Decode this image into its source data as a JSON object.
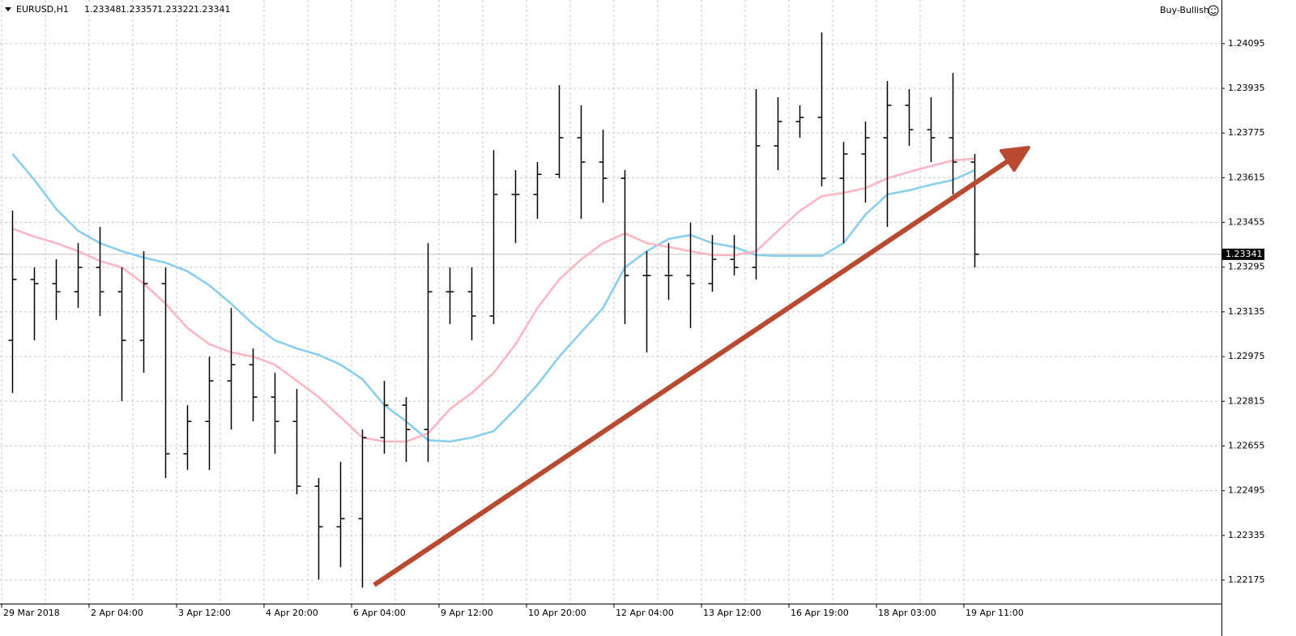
{
  "chart_data": {
    "type": "ohlc",
    "symbol": "EURUSD,H1",
    "header_values": [
      1.23348,
      1.23357,
      1.23322,
      1.23341
    ],
    "signal": "Buy-Bullish",
    "categories": [
      "29 Mar 2018",
      null,
      null,
      null,
      "2 Apr 04:00",
      null,
      null,
      null,
      "3 Apr 12:00",
      null,
      null,
      null,
      "4 Apr 20:00",
      null,
      null,
      null,
      "6 Apr 04:00",
      null,
      null,
      null,
      "9 Apr 12:00",
      null,
      null,
      null,
      "10 Apr 20:00",
      null,
      null,
      null,
      "12 Apr 04:00",
      null,
      null,
      null,
      "13 Apr 12:00",
      null,
      null,
      null,
      "16 Apr 19:00",
      null,
      null,
      null,
      "18 Apr 03:00",
      null,
      null,
      null,
      "19 Apr 11:00"
    ],
    "open": [
      1.23033,
      1.23251,
      1.23236,
      1.23207,
      1.23294,
      1.23207,
      1.23033,
      1.23236,
      1.22627,
      1.22743,
      1.22888,
      1.22946,
      1.2283,
      1.22743,
      1.22511,
      1.22366,
      1.22395,
      1.22685,
      1.22801,
      1.22714,
      1.23207,
      1.23207,
      1.2312,
      1.23555,
      1.23555,
      1.23627,
      1.23758,
      1.23671,
      1.23613,
      1.23265,
      1.23265,
      1.23265,
      1.23236,
      1.23323,
      1.23294,
      1.23729,
      1.23816,
      1.23831,
      1.23613,
      1.237,
      1.23758,
      1.23874,
      1.23787,
      1.23758,
      1.23671
    ],
    "high": [
      1.23497,
      1.23294,
      1.23323,
      1.23381,
      1.23439,
      1.23294,
      1.23352,
      1.23294,
      1.22801,
      1.22975,
      1.23149,
      1.23004,
      1.22917,
      1.22859,
      1.2254,
      1.22598,
      1.22714,
      1.22888,
      1.2283,
      1.23381,
      1.23294,
      1.23294,
      1.23714,
      1.23642,
      1.23671,
      1.23946,
      1.23874,
      1.23787,
      1.23642,
      1.23352,
      1.23381,
      1.23454,
      1.2341,
      1.2341,
      1.23932,
      1.23903,
      1.23874,
      1.24135,
      1.23743,
      1.23816,
      1.23961,
      1.23932,
      1.23903,
      1.2399,
      1.237
    ],
    "low": [
      1.22845,
      1.23033,
      1.23106,
      1.23149,
      1.2312,
      1.22816,
      1.22917,
      1.2254,
      1.22569,
      1.22569,
      1.22714,
      1.22743,
      1.22627,
      1.22482,
      1.22177,
      1.22221,
      1.22148,
      1.22627,
      1.22598,
      1.22598,
      1.23091,
      1.23033,
      1.23091,
      1.23381,
      1.23468,
      1.23613,
      1.23468,
      1.23526,
      1.23091,
      1.2299,
      1.23178,
      1.23077,
      1.23207,
      1.23265,
      1.23251,
      1.23642,
      1.23758,
      1.23584,
      1.23381,
      1.23526,
      1.23439,
      1.23729,
      1.23671,
      1.23555,
      1.23294
    ],
    "close": [
      1.23251,
      1.23236,
      1.23207,
      1.23294,
      1.23207,
      1.23033,
      1.23236,
      1.22627,
      1.22743,
      1.22888,
      1.22946,
      1.2283,
      1.22743,
      1.22511,
      1.22366,
      1.22395,
      1.22685,
      1.22801,
      1.22714,
      1.23207,
      1.23207,
      1.2312,
      1.23555,
      1.23555,
      1.23627,
      1.23758,
      1.23671,
      1.23613,
      1.23265,
      1.23265,
      1.23265,
      1.23236,
      1.23323,
      1.23294,
      1.23729,
      1.23816,
      1.23831,
      1.23613,
      1.237,
      1.23758,
      1.23874,
      1.23787,
      1.23758,
      1.23671,
      1.23341
    ],
    "color": "#000000",
    "lines": [
      {
        "color": "#87cdef",
        "values": [
          1.237,
          1.23607,
          1.23503,
          1.23425,
          1.23381,
          1.23352,
          1.23329,
          1.23311,
          1.2328,
          1.2323,
          1.23164,
          1.23091,
          1.23033,
          1.23004,
          1.22981,
          1.22946,
          1.22894,
          1.22801,
          1.22743,
          1.22676,
          1.22671,
          1.22685,
          1.22708,
          1.22787,
          1.22874,
          1.22975,
          1.23062,
          1.23149,
          1.23294,
          1.23352,
          1.23396,
          1.2341,
          1.23381,
          1.23367,
          1.23338,
          1.23335,
          1.23335,
          1.23335,
          1.23381,
          1.23483,
          1.23555,
          1.2357,
          1.2359,
          1.23607,
          1.23642
        ]
      },
      {
        "color": "#ffb4bf",
        "values": [
          1.23433,
          1.23404,
          1.23381,
          1.23352,
          1.23317,
          1.23294,
          1.23236,
          1.23164,
          1.23077,
          1.23019,
          1.2299,
          1.22975,
          1.22946,
          1.22888,
          1.2283,
          1.22758,
          1.22685,
          1.22671,
          1.22671,
          1.227,
          1.22787,
          1.22845,
          1.22917,
          1.23019,
          1.23149,
          1.23251,
          1.23323,
          1.23381,
          1.23416,
          1.23381,
          1.23367,
          1.23352,
          1.23338,
          1.23338,
          1.23352,
          1.23425,
          1.23497,
          1.23549,
          1.23561,
          1.23578,
          1.23613,
          1.23636,
          1.23657,
          1.23677,
          1.23683
        ]
      }
    ],
    "current_price": 1.23341,
    "ylim": [
      1.22091,
      1.24251
    ],
    "yticks": [
      1.24095,
      1.23935,
      1.23775,
      1.23615,
      1.23455,
      1.23295,
      1.23135,
      1.22975,
      1.22815,
      1.22655,
      1.22495,
      1.22335,
      1.22175
    ],
    "grid": true
  }
}
